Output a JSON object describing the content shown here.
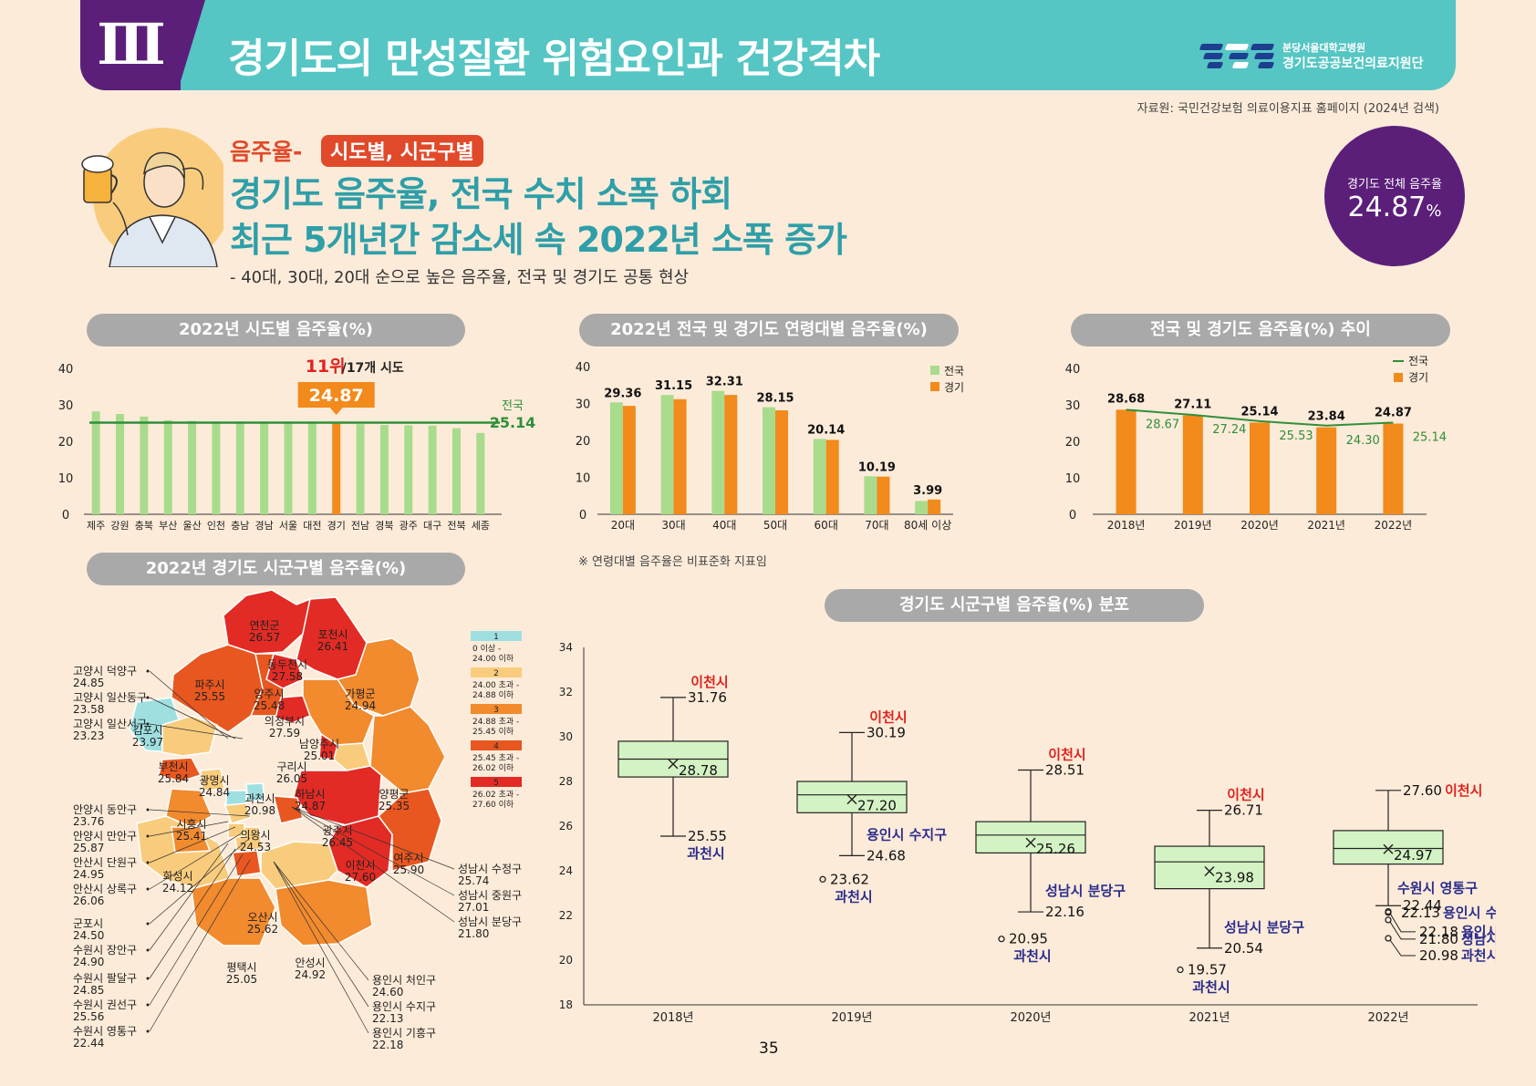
{
  "header": {
    "section_numeral": "Ⅲ",
    "title": "경기도의 만성질환 위험요인과 건강격차",
    "logo_line1": "분당서울대학교병원",
    "logo_line2": "경기도공공보건의료지원단"
  },
  "source": "자료원: 국민건강보험 의료이용지표 홈페이지 (2024년 검색)",
  "hero": {
    "topic_label": "음주율-",
    "topic_tag": "시도별, 시군구별",
    "headline1": "경기도 음주율, 전국 수치 소폭 하회",
    "headline2": "최근 5개년간 감소세 속 2022년 소폭 증가",
    "subline": "- 40대, 30대, 20대 순으로 높은 음주율, 전국 및 경기도 공통 현상",
    "circle_label": "경기도 전체 음주율",
    "circle_value": "24.87",
    "circle_unit": "%"
  },
  "colors": {
    "teal": "#55c6c4",
    "purple": "#5b1f7a",
    "green_bar": "#a8dc8c",
    "orange_bar": "#f28a1c",
    "national_line": "#2f8f3a",
    "red_label": "#e0231f",
    "navy_label": "#2b2e8c",
    "box_fill": "#d4f3c4",
    "map_tier1": "#9fdfe0",
    "map_tier2": "#f9cc7d",
    "map_tier3": "#f28a2e",
    "map_tier4": "#e8571f",
    "map_tier5": "#e22b24"
  },
  "charts": {
    "sido": {
      "title": "2022년 시도별 음주율(%)",
      "rank_text": "11위",
      "rank_suffix": "/17개 시도",
      "highlight_value": "24.87",
      "national_label": "전국",
      "national_value": "25.14"
    },
    "age": {
      "title": "2022년 전국 및 경기도 연령대별 음주율(%)",
      "note": "※ 연령대별 음주율은 비표준화 지표임"
    },
    "trend": {
      "title": "전국 및 경기도 음주율(%) 추이"
    },
    "map": {
      "title": "2022년 경기도 시군구별 음주율(%)"
    },
    "box": {
      "title": "경기도 시군구별 음주율(%) 분포"
    }
  },
  "chart_data": [
    {
      "type": "bar",
      "title": "2022년 시도별 음주율(%)",
      "categories": [
        "제주",
        "강원",
        "충북",
        "부산",
        "울산",
        "인천",
        "충남",
        "경남",
        "서울",
        "대전",
        "경기",
        "전남",
        "경북",
        "광주",
        "대구",
        "전북",
        "세종"
      ],
      "values": [
        28.2,
        27.5,
        26.8,
        25.8,
        25.6,
        25.3,
        25.2,
        25.2,
        25.1,
        25.0,
        24.87,
        24.7,
        24.5,
        24.4,
        24.3,
        23.6,
        22.3
      ],
      "highlight": "경기",
      "reference_line": {
        "name": "전국",
        "value": 25.14
      },
      "ylim": [
        0,
        40
      ],
      "yticks": [
        0,
        10,
        20,
        30,
        40
      ]
    },
    {
      "type": "bar",
      "title": "2022년 전국 및 경기도 연령대별 음주율(%)",
      "categories": [
        "20대",
        "30대",
        "40대",
        "50대",
        "60대",
        "70대",
        "80세 이상"
      ],
      "series": [
        {
          "name": "전국",
          "values": [
            30.3,
            32.3,
            33.4,
            29.0,
            20.4,
            10.3,
            3.6
          ]
        },
        {
          "name": "경기",
          "values": [
            29.36,
            31.15,
            32.31,
            28.15,
            20.14,
            10.19,
            3.99
          ]
        }
      ],
      "labels": [
        "29.36",
        "31.15",
        "32.31",
        "28.15",
        "20.14",
        "10.19",
        "3.99"
      ],
      "ylim": [
        0,
        40
      ],
      "yticks": [
        0,
        10,
        20,
        30,
        40
      ],
      "legend": "top-right"
    },
    {
      "type": "bar",
      "title": "전국 및 경기도 음주율(%) 추이",
      "categories": [
        "2018년",
        "2019년",
        "2020년",
        "2021년",
        "2022년"
      ],
      "series": [
        {
          "name": "전국",
          "type": "line",
          "values": [
            28.67,
            27.24,
            25.53,
            24.3,
            25.14
          ]
        },
        {
          "name": "경기",
          "type": "bar",
          "values": [
            28.68,
            27.11,
            25.14,
            23.84,
            24.87
          ]
        }
      ],
      "ylim": [
        0,
        40
      ],
      "yticks": [
        0,
        10,
        20,
        30,
        40
      ],
      "legend": "top-right"
    },
    {
      "type": "box",
      "title": "경기도 시군구별 음주율(%) 분포",
      "categories": [
        "2018년",
        "2019년",
        "2020년",
        "2021년",
        "2022년"
      ],
      "ylim": [
        18,
        34
      ],
      "yticks": [
        18,
        20,
        22,
        24,
        26,
        28,
        30,
        32,
        34
      ],
      "boxes": [
        {
          "q1": 28.2,
          "median": 29.0,
          "q3": 29.8,
          "mean": 28.78,
          "max": 31.76,
          "min": 25.55,
          "mean_label": "28.78",
          "max_label": "31.76",
          "min_label": "25.55",
          "max_name": "이천시",
          "min_name": "과천시",
          "outliers": []
        },
        {
          "q1": 26.6,
          "median": 27.4,
          "q3": 28.0,
          "mean": 27.2,
          "max": 30.19,
          "min": 24.68,
          "mean_label": "27.20",
          "max_label": "30.19",
          "min_label": "24.68",
          "max_name": "이천시",
          "min_name": "용인시 수지구",
          "outliers": [
            {
              "value": 23.62,
              "label": "23.62",
              "name": "과천시"
            }
          ]
        },
        {
          "q1": 24.8,
          "median": 25.6,
          "q3": 26.2,
          "mean": 25.26,
          "max": 28.51,
          "min": 22.16,
          "mean_label": "25.26",
          "max_label": "28.51",
          "min_label": "22.16",
          "max_name": "이천시",
          "min_name": "성남시 분당구",
          "outliers": [
            {
              "value": 20.95,
              "label": "20.95",
              "name": "과천시"
            }
          ]
        },
        {
          "q1": 23.2,
          "median": 24.4,
          "q3": 25.1,
          "mean": 23.98,
          "max": 26.71,
          "min": 20.54,
          "mean_label": "23.98",
          "max_label": "26.71",
          "min_label": "20.54",
          "max_name": "이천시",
          "min_name": "성남시 분당구",
          "outliers": [
            {
              "value": 19.57,
              "label": "19.57",
              "name": "과천시"
            }
          ]
        },
        {
          "q1": 24.3,
          "median": 25.0,
          "q3": 25.8,
          "mean": 24.97,
          "max": 27.6,
          "min": 22.44,
          "mean_label": "24.97",
          "max_label": "27.60",
          "min_label": "22.44",
          "max_name": "이천시",
          "min_name": "수원시 영통구",
          "outliers": [
            {
              "value": 22.13,
              "label": "22.13",
              "name": "용인시 수지구"
            },
            {
              "value": 22.18,
              "label": "22.18",
              "name": "용인시 기흥구"
            },
            {
              "value": 21.8,
              "label": "21.80",
              "name": "성남시 분당구"
            },
            {
              "value": 20.98,
              "label": "20.98",
              "name": "과천시"
            }
          ]
        }
      ]
    },
    {
      "type": "map",
      "title": "2022년 경기도 시군구별 음주율(%)",
      "legend": [
        {
          "tier": "1",
          "range": "0 이상 - 24.00 이하"
        },
        {
          "tier": "2",
          "range": "24.00 초과 - 24.88 이하"
        },
        {
          "tier": "3",
          "range": "24.88 초과 - 25.45 이하"
        },
        {
          "tier": "4",
          "range": "25.45 초과 - 26.02 이하"
        },
        {
          "tier": "5",
          "range": "26.02 초과 - 27.60 이하"
        }
      ],
      "regions_inside": [
        {
          "name": "연천군",
          "value": "26.57"
        },
        {
          "name": "포천시",
          "value": "26.41"
        },
        {
          "name": "파주시",
          "value": "25.55"
        },
        {
          "name": "동두천시",
          "value": "27.58"
        },
        {
          "name": "양주시",
          "value": "25.48"
        },
        {
          "name": "가평군",
          "value": "24.94"
        },
        {
          "name": "의정부시",
          "value": "27.59"
        },
        {
          "name": "김포시",
          "value": "23.97"
        },
        {
          "name": "남양주시",
          "value": "25.01"
        },
        {
          "name": "구리시",
          "value": "26.05"
        },
        {
          "name": "부천시",
          "value": "25.84"
        },
        {
          "name": "광명시",
          "value": "24.84"
        },
        {
          "name": "과천시",
          "value": "20.98"
        },
        {
          "name": "하남시",
          "value": "24.87"
        },
        {
          "name": "양평군",
          "value": "25.35"
        },
        {
          "name": "시흥시",
          "value": "25.41"
        },
        {
          "name": "의왕시",
          "value": "24.53"
        },
        {
          "name": "광주시",
          "value": "26.45"
        },
        {
          "name": "이천시",
          "value": "27.60"
        },
        {
          "name": "여주시",
          "value": "25.90"
        },
        {
          "name": "화성시",
          "value": "24.12"
        },
        {
          "name": "오산시",
          "value": "25.62"
        },
        {
          "name": "평택시",
          "value": "25.05"
        },
        {
          "name": "안성시",
          "value": "24.92"
        }
      ],
      "callouts_left": [
        {
          "name": "고양시 덕양구",
          "value": "24.85"
        },
        {
          "name": "고양시 일산동구",
          "value": "23.58"
        },
        {
          "name": "고양시 일산서구",
          "value": "23.23"
        },
        {
          "name": "안양시 동안구",
          "value": "23.76"
        },
        {
          "name": "안양시 만안구",
          "value": "25.87"
        },
        {
          "name": "안산시 단원구",
          "value": "24.95"
        },
        {
          "name": "안산시 상록구",
          "value": "26.06"
        },
        {
          "name": "군포시",
          "value": "24.50"
        },
        {
          "name": "수원시 장안구",
          "value": "24.90"
        },
        {
          "name": "수원시 팔달구",
          "value": "24.85"
        },
        {
          "name": "수원시 권선구",
          "value": "25.56"
        },
        {
          "name": "수원시 영통구",
          "value": "22.44"
        }
      ],
      "callouts_right": [
        {
          "name": "성남시 수정구",
          "value": "25.74"
        },
        {
          "name": "성남시 중원구",
          "value": "27.01"
        },
        {
          "name": "성남시 분당구",
          "value": "21.80"
        },
        {
          "name": "용인시 처인구",
          "value": "24.60"
        },
        {
          "name": "용인시 수지구",
          "value": "22.13"
        },
        {
          "name": "용인시 기흥구",
          "value": "22.18"
        }
      ]
    }
  ],
  "page_number": "35"
}
